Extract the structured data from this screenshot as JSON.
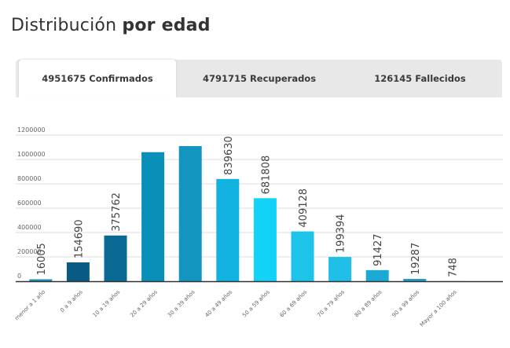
{
  "title": {
    "light": "Distribución",
    "bold": "por edad"
  },
  "tabs": [
    {
      "label": "4951675 Confirmados",
      "active": true
    },
    {
      "label": "4791715 Recuperados",
      "active": false
    },
    {
      "label": "126145 Fallecidos",
      "active": false
    }
  ],
  "chart_data": {
    "type": "bar",
    "categories": [
      "menor a 1 año",
      "0 a 9 años",
      "10 a 19 años",
      "20 a 29 años",
      "30 a 39 años",
      "40 a 49 años",
      "50 a 59 años",
      "60 a 69 años",
      "70 a 79 años",
      "80 a 89 años",
      "90 a 99 años",
      "Mayor a 100 años"
    ],
    "values": [
      16005,
      154690,
      375762,
      1060000,
      1110000,
      839630,
      681808,
      409128,
      199394,
      91427,
      19287,
      748
    ],
    "data_labels": [
      "16005",
      "154690",
      "375762",
      "",
      "",
      "839630",
      "681808",
      "409128",
      "199394",
      "91427",
      "19287",
      "748"
    ],
    "colors": [
      "#1c8fb3",
      "#0a5a86",
      "#0a6a93",
      "#0a8fb8",
      "#1296c0",
      "#11b2e0",
      "#13d2f7",
      "#1ec3e9",
      "#21bee8",
      "#1aaad3",
      "#1d9ec9",
      "#1a99c3"
    ],
    "yticks": [
      "0",
      "200000",
      "400000",
      "600000",
      "800000",
      "1000000",
      "1200000"
    ],
    "ylim": [
      0,
      1200000
    ],
    "xlabel": "",
    "ylabel": "",
    "grid": true
  }
}
